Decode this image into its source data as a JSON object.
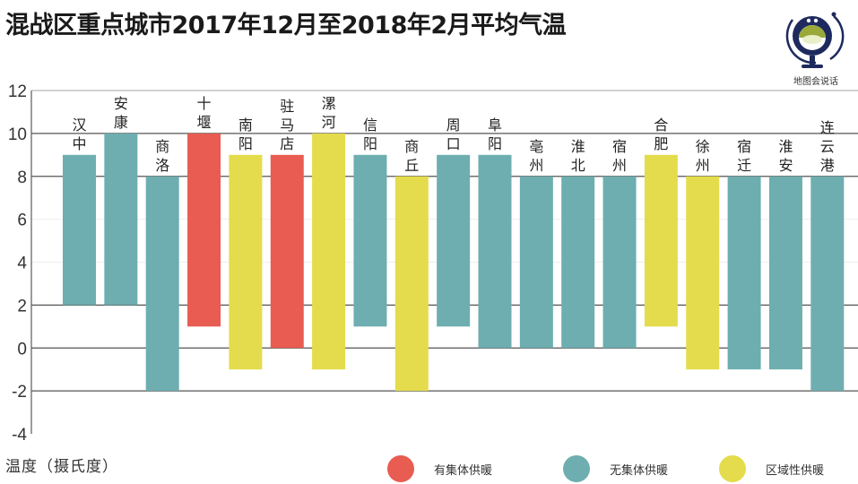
{
  "title": "混战区重点城市2017年12月至2018年2月平均气温",
  "logo": {
    "icon": "globe-logo-icon",
    "text": "地图会说话"
  },
  "colors": {
    "有集体供暖": "#e85c52",
    "无集体供暖": "#6eaeb0",
    "区域性供暖": "#e4dc4c"
  },
  "chart_data": {
    "type": "bar",
    "subtype": "floating-range",
    "title": "混战区重点城市2017年12月至2018年2月平均气温",
    "xlabel": "",
    "ylabel": "温度（摄氏度）",
    "ylim": [
      -4,
      12
    ],
    "yticks": [
      12,
      10,
      8,
      6,
      4,
      2,
      0,
      -2,
      -4
    ],
    "major_gridlines": [
      10,
      8,
      2,
      0,
      -2
    ],
    "legend": {
      "placement": "bottom-right",
      "entries": [
        "有集体供暖",
        "无集体供暖",
        "区域性供暖"
      ]
    },
    "categories": [
      "汉中",
      "安康",
      "商洛",
      "十堰",
      "南阳",
      "驻马店",
      "漯河",
      "信阳",
      "商丘",
      "周口",
      "阜阳",
      "亳州",
      "淮北",
      "宿州",
      "合肥",
      "徐州",
      "宿迁",
      "淮安",
      "连云港"
    ],
    "series": [
      {
        "name": "min_temp",
        "values": [
          2,
          2,
          -2,
          1,
          -1,
          0,
          -1,
          1,
          -2,
          1,
          0,
          0,
          0,
          0,
          1,
          -1,
          -1,
          -1,
          -2
        ]
      },
      {
        "name": "max_temp",
        "values": [
          9,
          10,
          8,
          10,
          9,
          9,
          10,
          9,
          8,
          9,
          9,
          8,
          8,
          8,
          9,
          8,
          8,
          8,
          8
        ]
      },
      {
        "name": "heating_type",
        "values": [
          "无集体供暖",
          "无集体供暖",
          "无集体供暖",
          "有集体供暖",
          "区域性供暖",
          "有集体供暖",
          "区域性供暖",
          "无集体供暖",
          "区域性供暖",
          "无集体供暖",
          "无集体供暖",
          "无集体供暖",
          "无集体供暖",
          "无集体供暖",
          "区域性供暖",
          "区域性供暖",
          "无集体供暖",
          "无集体供暖",
          "无集体供暖"
        ]
      }
    ]
  }
}
